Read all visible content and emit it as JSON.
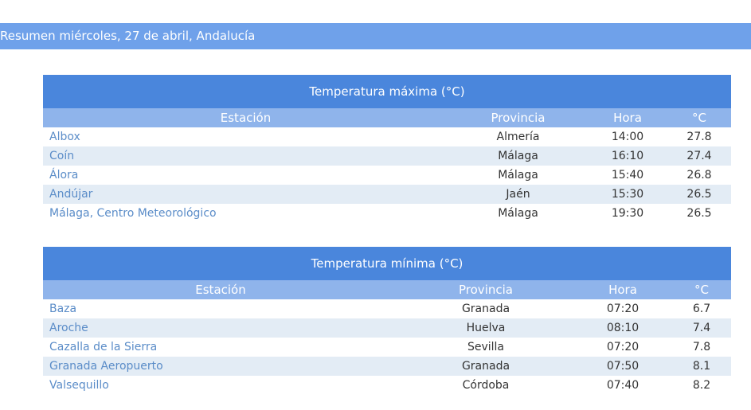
{
  "header": {
    "title": "Resumen miércoles, 27 de abril, Andalucía"
  },
  "tables": [
    {
      "title": "Temperatura máxima (°C)",
      "columns": [
        "Estación",
        "Provincia",
        "Hora",
        "°C"
      ],
      "rows": [
        [
          "Albox",
          "Almería",
          "14:00",
          27.8
        ],
        [
          "Coín",
          "Málaga",
          "16:10",
          27.4
        ],
        [
          "Álora",
          "Málaga",
          "15:40",
          26.8
        ],
        [
          "Andújar",
          "Jaén",
          "15:30",
          26.5
        ],
        [
          "Málaga, Centro Meteorológico",
          "Málaga",
          "19:30",
          26.5
        ]
      ]
    },
    {
      "title": "Temperatura mínima (°C)",
      "columns": [
        "Estación",
        "Provincia",
        "Hora",
        "°C"
      ],
      "rows": [
        [
          "Baza",
          "Granada",
          "07:20",
          6.7
        ],
        [
          "Aroche",
          "Huelva",
          "08:10",
          7.4
        ],
        [
          "Cazalla de la Sierra",
          "Sevilla",
          "07:20",
          7.8
        ],
        [
          "Granada Aeropuerto",
          "Granada",
          "07:50",
          8.1
        ],
        [
          "Valsequillo",
          "Córdoba",
          "07:40",
          8.2
        ]
      ]
    }
  ]
}
